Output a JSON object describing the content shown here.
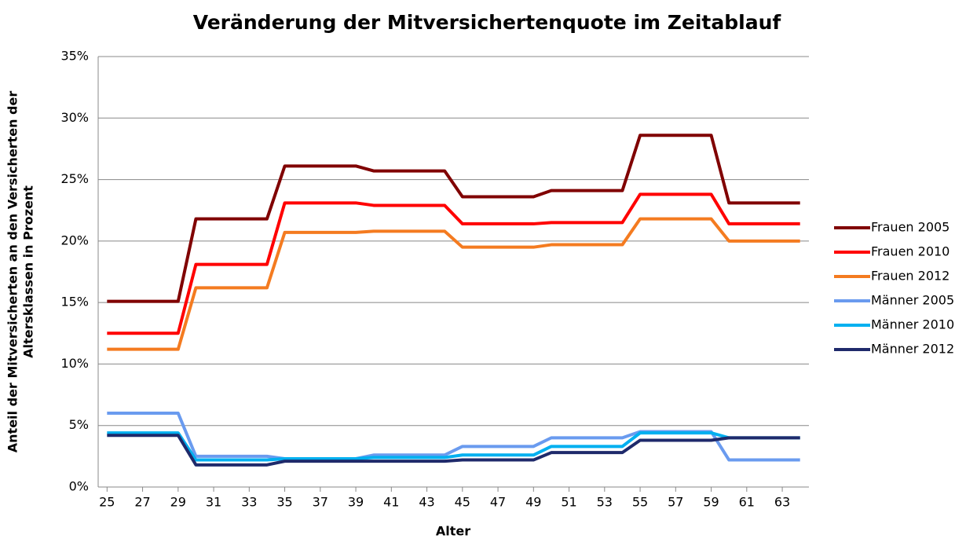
{
  "chart_data": {
    "type": "line",
    "title": "Veränderung der Mitversichertenquote im Zeitablauf",
    "xlabel": "Alter",
    "ylabel": [
      "Anteil der Mitversicherten an den Versicherten der",
      "Altersklassen in Prozent"
    ],
    "x": [
      25,
      26,
      27,
      28,
      29,
      30,
      31,
      32,
      33,
      34,
      35,
      36,
      37,
      38,
      39,
      40,
      41,
      42,
      43,
      44,
      45,
      46,
      47,
      48,
      49,
      50,
      51,
      52,
      53,
      54,
      55,
      56,
      57,
      58,
      59,
      60,
      61,
      62,
      63,
      64
    ],
    "xlim": [
      24.5,
      64.5
    ],
    "xticks": [
      25,
      27,
      29,
      31,
      33,
      35,
      37,
      39,
      41,
      43,
      45,
      47,
      49,
      51,
      53,
      55,
      57,
      59,
      61,
      63
    ],
    "ylim": [
      0,
      35
    ],
    "yticks": [
      {
        "value": 0,
        "label": "0%"
      },
      {
        "value": 5,
        "label": "5%"
      },
      {
        "value": 10,
        "label": "10%"
      },
      {
        "value": 15,
        "label": "15%"
      },
      {
        "value": 20,
        "label": "20%"
      },
      {
        "value": 25,
        "label": "25%"
      },
      {
        "value": 30,
        "label": "30%"
      },
      {
        "value": 35,
        "label": "35%"
      }
    ],
    "grid": true,
    "legend": "right",
    "series": [
      {
        "name": "Frauen 2005",
        "color": "#800000",
        "values": [
          15.1,
          15.1,
          15.1,
          15.1,
          15.1,
          21.8,
          21.8,
          21.8,
          21.8,
          21.8,
          26.1,
          26.1,
          26.1,
          26.1,
          26.1,
          25.7,
          25.7,
          25.7,
          25.7,
          25.7,
          23.6,
          23.6,
          23.6,
          23.6,
          23.6,
          24.1,
          24.1,
          24.1,
          24.1,
          24.1,
          28.6,
          28.6,
          28.6,
          28.6,
          28.6,
          23.1,
          23.1,
          23.1,
          23.1,
          23.1
        ]
      },
      {
        "name": "Frauen 2010",
        "color": "#ff0000",
        "values": [
          12.5,
          12.5,
          12.5,
          12.5,
          12.5,
          18.1,
          18.1,
          18.1,
          18.1,
          18.1,
          23.1,
          23.1,
          23.1,
          23.1,
          23.1,
          22.9,
          22.9,
          22.9,
          22.9,
          22.9,
          21.4,
          21.4,
          21.4,
          21.4,
          21.4,
          21.5,
          21.5,
          21.5,
          21.5,
          21.5,
          23.8,
          23.8,
          23.8,
          23.8,
          23.8,
          21.4,
          21.4,
          21.4,
          21.4,
          21.4
        ]
      },
      {
        "name": "Frauen 2012",
        "color": "#f47b20",
        "values": [
          11.2,
          11.2,
          11.2,
          11.2,
          11.2,
          16.2,
          16.2,
          16.2,
          16.2,
          16.2,
          20.7,
          20.7,
          20.7,
          20.7,
          20.7,
          20.8,
          20.8,
          20.8,
          20.8,
          20.8,
          19.5,
          19.5,
          19.5,
          19.5,
          19.5,
          19.7,
          19.7,
          19.7,
          19.7,
          19.7,
          21.8,
          21.8,
          21.8,
          21.8,
          21.8,
          20.0,
          20.0,
          20.0,
          20.0,
          20.0
        ]
      },
      {
        "name": "Männer 2005",
        "color": "#6a9bef",
        "values": [
          6.0,
          6.0,
          6.0,
          6.0,
          6.0,
          2.5,
          2.5,
          2.5,
          2.5,
          2.5,
          2.3,
          2.3,
          2.3,
          2.3,
          2.3,
          2.6,
          2.6,
          2.6,
          2.6,
          2.6,
          3.3,
          3.3,
          3.3,
          3.3,
          3.3,
          4.0,
          4.0,
          4.0,
          4.0,
          4.0,
          4.5,
          4.5,
          4.5,
          4.5,
          4.5,
          2.2,
          2.2,
          2.2,
          2.2,
          2.2
        ]
      },
      {
        "name": "Männer 2010",
        "color": "#00b0f0",
        "values": [
          4.4,
          4.4,
          4.4,
          4.4,
          4.4,
          2.2,
          2.2,
          2.2,
          2.2,
          2.2,
          2.3,
          2.3,
          2.3,
          2.3,
          2.3,
          2.4,
          2.4,
          2.4,
          2.4,
          2.4,
          2.6,
          2.6,
          2.6,
          2.6,
          2.6,
          3.3,
          3.3,
          3.3,
          3.3,
          3.3,
          4.4,
          4.4,
          4.4,
          4.4,
          4.4,
          4.0,
          4.0,
          4.0,
          4.0,
          4.0
        ]
      },
      {
        "name": "Männer 2012",
        "color": "#1f2a6b",
        "values": [
          4.2,
          4.2,
          4.2,
          4.2,
          4.2,
          1.8,
          1.8,
          1.8,
          1.8,
          1.8,
          2.1,
          2.1,
          2.1,
          2.1,
          2.1,
          2.1,
          2.1,
          2.1,
          2.1,
          2.1,
          2.2,
          2.2,
          2.2,
          2.2,
          2.2,
          2.8,
          2.8,
          2.8,
          2.8,
          2.8,
          3.8,
          3.8,
          3.8,
          3.8,
          3.8,
          4.0,
          4.0,
          4.0,
          4.0,
          4.0
        ]
      }
    ]
  }
}
